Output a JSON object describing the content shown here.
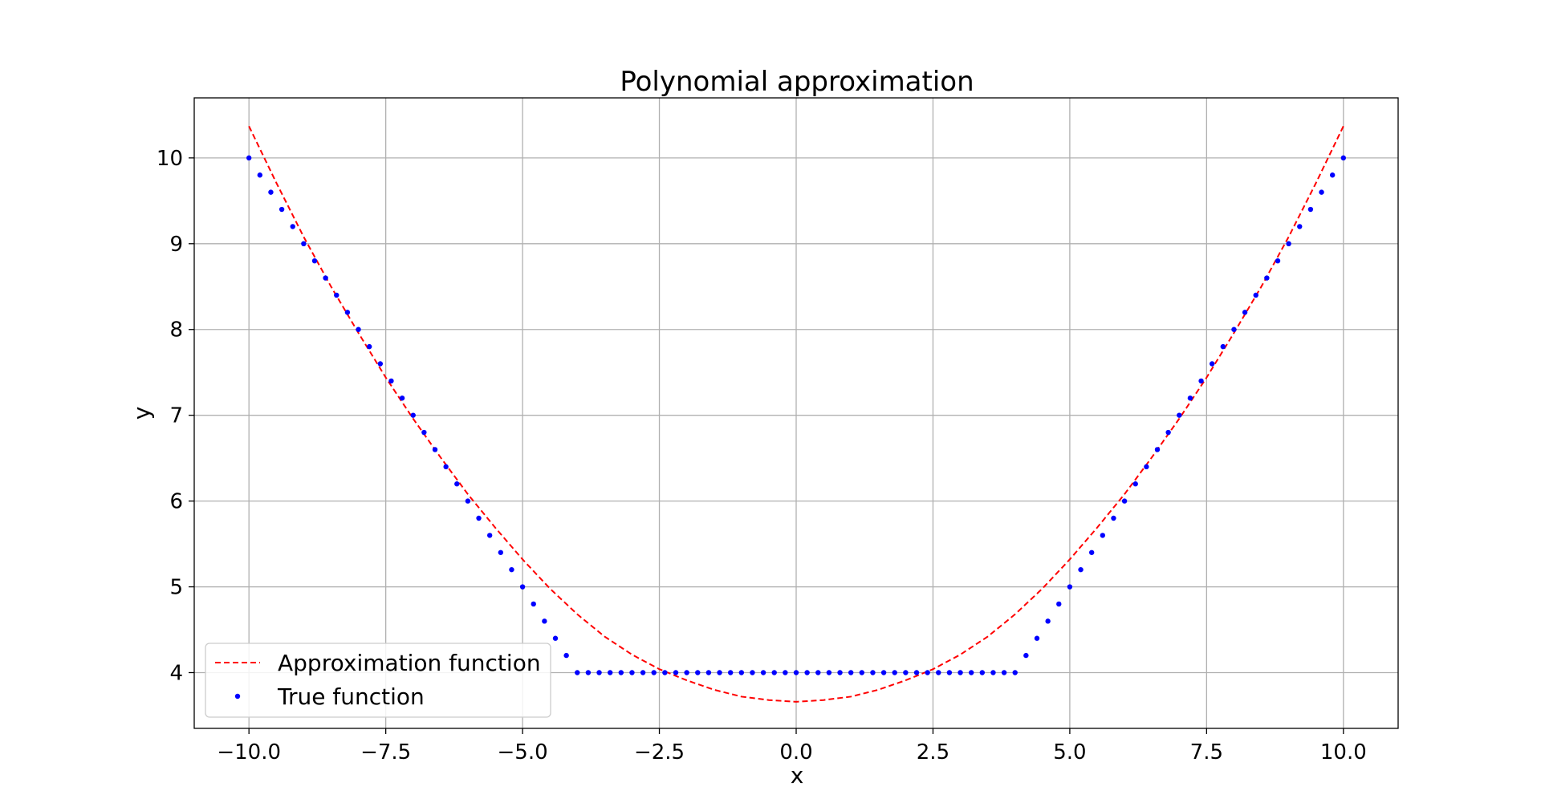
{
  "chart_data": {
    "type": "line",
    "title": "Polynomial approximation",
    "xlabel": "x",
    "ylabel": "y",
    "xlim": [
      -11.0,
      11.0
    ],
    "ylim": [
      3.35,
      10.7
    ],
    "xticks": [
      -10.0,
      -7.5,
      -5.0,
      -2.5,
      0.0,
      2.5,
      5.0,
      7.5,
      10.0
    ],
    "xtick_labels": [
      "−10.0",
      "−7.5",
      "−5.0",
      "−2.5",
      "0.0",
      "2.5",
      "5.0",
      "7.5",
      "10.0"
    ],
    "yticks": [
      4,
      5,
      6,
      7,
      8,
      9,
      10
    ],
    "ytick_labels": [
      "4",
      "5",
      "6",
      "7",
      "8",
      "9",
      "10"
    ],
    "grid": true,
    "legend_position": "lower-left",
    "series": [
      {
        "name": "Approximation function",
        "style": "dashed-line",
        "color": "#ff0000",
        "x": [
          -10.0,
          -9.5,
          -9.0,
          -8.5,
          -8.0,
          -7.5,
          -7.0,
          -6.5,
          -6.0,
          -5.5,
          -5.0,
          -4.5,
          -4.0,
          -3.5,
          -3.0,
          -2.5,
          -2.0,
          -1.5,
          -1.0,
          -0.5,
          0.0,
          0.5,
          1.0,
          1.5,
          2.0,
          2.5,
          3.0,
          3.5,
          4.0,
          4.5,
          5.0,
          5.5,
          6.0,
          6.5,
          7.0,
          7.5,
          8.0,
          8.5,
          9.0,
          9.5,
          10.0
        ],
        "y": [
          10.37,
          9.71,
          9.08,
          8.5,
          7.96,
          7.44,
          6.96,
          6.51,
          6.08,
          5.69,
          5.32,
          4.98,
          4.68,
          4.42,
          4.21,
          4.04,
          3.91,
          3.8,
          3.72,
          3.68,
          3.66,
          3.68,
          3.72,
          3.8,
          3.91,
          4.04,
          4.21,
          4.42,
          4.68,
          4.98,
          5.32,
          5.69,
          6.08,
          6.51,
          6.96,
          7.44,
          7.96,
          8.5,
          9.08,
          9.71,
          10.37
        ]
      },
      {
        "name": "True function",
        "style": "points",
        "color": "#0000ff",
        "x": [
          -10.0,
          -9.8,
          -9.6,
          -9.4,
          -9.2,
          -9.0,
          -8.8,
          -8.6,
          -8.4,
          -8.2,
          -8.0,
          -7.8,
          -7.6,
          -7.4,
          -7.2,
          -7.0,
          -6.8,
          -6.6,
          -6.4,
          -6.2,
          -6.0,
          -5.8,
          -5.6,
          -5.4,
          -5.2,
          -5.0,
          -4.8,
          -4.6,
          -4.4,
          -4.2,
          -4.0,
          -3.8,
          -3.6,
          -3.4,
          -3.2,
          -3.0,
          -2.8,
          -2.6,
          -2.4,
          -2.2,
          -2.0,
          -1.8,
          -1.6,
          -1.4,
          -1.2,
          -1.0,
          -0.8,
          -0.6,
          -0.4,
          -0.2,
          0.0,
          0.2,
          0.4,
          0.6,
          0.8,
          1.0,
          1.2,
          1.4,
          1.6,
          1.8,
          2.0,
          2.2,
          2.4,
          2.6,
          2.8,
          3.0,
          3.2,
          3.4,
          3.6,
          3.8,
          4.0,
          4.2,
          4.4,
          4.6,
          4.8,
          5.0,
          5.2,
          5.4,
          5.6,
          5.8,
          6.0,
          6.2,
          6.4,
          6.6,
          6.8,
          7.0,
          7.2,
          7.4,
          7.6,
          7.8,
          8.0,
          8.2,
          8.4,
          8.6,
          8.8,
          9.0,
          9.2,
          9.4,
          9.6,
          9.8,
          10.0
        ],
        "y": [
          10.0,
          9.8,
          9.6,
          9.4,
          9.2,
          9.0,
          8.8,
          8.6,
          8.4,
          8.2,
          8.0,
          7.8,
          7.6,
          7.4,
          7.2,
          7.0,
          6.8,
          6.6,
          6.4,
          6.2,
          6.0,
          5.8,
          5.6,
          5.4,
          5.2,
          5.0,
          4.8,
          4.6,
          4.4,
          4.2,
          4.0,
          4.0,
          4.0,
          4.0,
          4.0,
          4.0,
          4.0,
          4.0,
          4.0,
          4.0,
          4.0,
          4.0,
          4.0,
          4.0,
          4.0,
          4.0,
          4.0,
          4.0,
          4.0,
          4.0,
          4.0,
          4.0,
          4.0,
          4.0,
          4.0,
          4.0,
          4.0,
          4.0,
          4.0,
          4.0,
          4.0,
          4.0,
          4.0,
          4.0,
          4.0,
          4.0,
          4.0,
          4.0,
          4.0,
          4.0,
          4.0,
          4.2,
          4.4,
          4.6,
          4.8,
          5.0,
          5.2,
          5.4,
          5.6,
          5.8,
          6.0,
          6.2,
          6.4,
          6.6,
          6.8,
          7.0,
          7.2,
          7.4,
          7.6,
          7.8,
          8.0,
          8.2,
          8.4,
          8.6,
          8.8,
          9.0,
          9.2,
          9.4,
          9.6,
          9.8,
          10.0
        ]
      }
    ]
  }
}
